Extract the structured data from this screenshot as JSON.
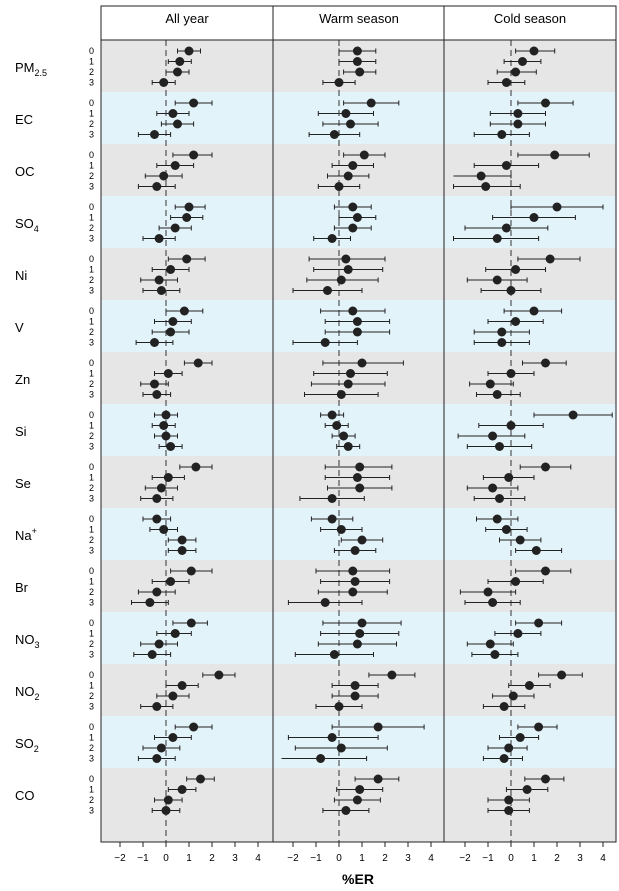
{
  "chart_data": {
    "type": "forest",
    "xlabel": "%ER",
    "panels": [
      "All year",
      "Warm season",
      "Cold season"
    ],
    "xticks": [
      -2,
      -1,
      0,
      1,
      2,
      3,
      4
    ],
    "xlim": [
      -2.5,
      4.5
    ],
    "lags": [
      "0",
      "1",
      "2",
      "3"
    ],
    "colors": {
      "band_gray": "#e6e6e6",
      "band_blue": "#e3f3fa",
      "point": "#222222"
    },
    "groups": [
      {
        "name": "PM",
        "sub": "2.5",
        "sup": "",
        "panels": [
          [
            [
              1.0,
              0.5,
              1.5
            ],
            [
              0.6,
              0.1,
              1.1
            ],
            [
              0.5,
              0.0,
              1.0
            ],
            [
              -0.1,
              -0.6,
              0.4
            ]
          ],
          [
            [
              0.8,
              0.0,
              1.6
            ],
            [
              0.8,
              0.0,
              1.6
            ],
            [
              0.9,
              0.2,
              1.6
            ],
            [
              0.0,
              -0.7,
              0.7
            ]
          ],
          [
            [
              1.0,
              0.2,
              1.9
            ],
            [
              0.5,
              -0.3,
              1.3
            ],
            [
              0.2,
              -0.6,
              1.1
            ],
            [
              -0.2,
              -1.0,
              0.6
            ]
          ]
        ]
      },
      {
        "name": "EC",
        "sub": "",
        "sup": "",
        "panels": [
          [
            [
              1.2,
              0.4,
              2.0
            ],
            [
              0.3,
              -0.4,
              1.0
            ],
            [
              0.5,
              -0.2,
              1.2
            ],
            [
              -0.5,
              -1.2,
              0.2
            ]
          ],
          [
            [
              1.4,
              0.2,
              2.6
            ],
            [
              0.3,
              -0.9,
              1.5
            ],
            [
              0.5,
              -0.7,
              1.7
            ],
            [
              -0.2,
              -1.3,
              0.9
            ]
          ],
          [
            [
              1.5,
              0.3,
              2.7
            ],
            [
              0.3,
              -0.9,
              1.5
            ],
            [
              0.3,
              -0.9,
              1.5
            ],
            [
              -0.4,
              -1.6,
              0.8
            ]
          ]
        ]
      },
      {
        "name": "OC",
        "sub": "",
        "sup": "",
        "panels": [
          [
            [
              1.2,
              0.3,
              2.0
            ],
            [
              0.4,
              -0.4,
              1.2
            ],
            [
              -0.1,
              -0.9,
              0.7
            ],
            [
              -0.4,
              -1.2,
              0.4
            ]
          ],
          [
            [
              1.1,
              0.2,
              2.0
            ],
            [
              0.6,
              -0.3,
              1.5
            ],
            [
              0.4,
              -0.5,
              1.3
            ],
            [
              0.0,
              -0.9,
              0.9
            ]
          ],
          [
            [
              1.9,
              0.3,
              3.4
            ],
            [
              -0.2,
              -1.6,
              1.2
            ],
            [
              -1.3,
              -2.6,
              0.0
            ],
            [
              -1.1,
              -2.5,
              0.4
            ]
          ]
        ]
      },
      {
        "name": "SO",
        "sub": "4",
        "sup": "",
        "panels": [
          [
            [
              1.0,
              0.4,
              1.7
            ],
            [
              0.9,
              0.2,
              1.6
            ],
            [
              0.4,
              -0.3,
              1.1
            ],
            [
              -0.3,
              -1.0,
              0.4
            ]
          ],
          [
            [
              0.6,
              -0.2,
              1.4
            ],
            [
              0.8,
              0.0,
              1.6
            ],
            [
              0.6,
              -0.2,
              1.4
            ],
            [
              -0.3,
              -1.1,
              0.5
            ]
          ],
          [
            [
              2.0,
              0.0,
              4.0
            ],
            [
              1.0,
              -0.8,
              2.8
            ],
            [
              -0.2,
              -2.0,
              1.6
            ],
            [
              -0.6,
              -2.5,
              1.2
            ]
          ]
        ]
      },
      {
        "name": "Ni",
        "sub": "",
        "sup": "",
        "panels": [
          [
            [
              0.9,
              0.1,
              1.7
            ],
            [
              0.2,
              -0.6,
              1.0
            ],
            [
              -0.3,
              -1.1,
              0.5
            ],
            [
              -0.2,
              -1.0,
              0.6
            ]
          ],
          [
            [
              0.3,
              -1.3,
              2.0
            ],
            [
              0.4,
              -1.1,
              1.9
            ],
            [
              0.1,
              -1.4,
              1.7
            ],
            [
              -0.5,
              -2.0,
              1.0
            ]
          ],
          [
            [
              1.7,
              0.3,
              3.0
            ],
            [
              0.2,
              -1.1,
              1.5
            ],
            [
              -0.6,
              -1.9,
              0.7
            ],
            [
              0.0,
              -1.3,
              1.3
            ]
          ]
        ]
      },
      {
        "name": "V",
        "sub": "",
        "sup": "",
        "panels": [
          [
            [
              0.8,
              0.0,
              1.6
            ],
            [
              0.3,
              -0.5,
              1.1
            ],
            [
              0.2,
              -0.6,
              1.0
            ],
            [
              -0.5,
              -1.3,
              0.3
            ]
          ],
          [
            [
              0.6,
              -0.8,
              2.0
            ],
            [
              0.8,
              -0.6,
              2.2
            ],
            [
              0.8,
              -0.6,
              2.2
            ],
            [
              -0.6,
              -2.0,
              0.8
            ]
          ],
          [
            [
              1.0,
              -0.3,
              2.2
            ],
            [
              0.2,
              -1.0,
              1.4
            ],
            [
              -0.4,
              -1.6,
              0.8
            ],
            [
              -0.4,
              -1.6,
              0.8
            ]
          ]
        ]
      },
      {
        "name": "Zn",
        "sub": "",
        "sup": "",
        "panels": [
          [
            [
              1.4,
              0.8,
              2.0
            ],
            [
              0.1,
              -0.5,
              0.7
            ],
            [
              -0.5,
              -1.1,
              0.1
            ],
            [
              -0.4,
              -1.0,
              0.2
            ]
          ],
          [
            [
              1.0,
              -0.7,
              2.8
            ],
            [
              0.5,
              -1.1,
              2.1
            ],
            [
              0.4,
              -1.2,
              2.0
            ],
            [
              0.1,
              -1.5,
              1.7
            ]
          ],
          [
            [
              1.5,
              0.5,
              2.4
            ],
            [
              0.0,
              -1.0,
              1.0
            ],
            [
              -0.9,
              -1.8,
              0.1
            ],
            [
              -0.6,
              -1.5,
              0.4
            ]
          ]
        ]
      },
      {
        "name": "Si",
        "sub": "",
        "sup": "",
        "panels": [
          [
            [
              0.0,
              -0.5,
              0.5
            ],
            [
              -0.1,
              -0.6,
              0.4
            ],
            [
              0.0,
              -0.5,
              0.5
            ],
            [
              0.2,
              -0.3,
              0.7
            ]
          ],
          [
            [
              -0.3,
              -0.8,
              0.2
            ],
            [
              -0.1,
              -0.6,
              0.4
            ],
            [
              0.2,
              -0.3,
              0.7
            ],
            [
              0.4,
              -0.1,
              0.9
            ]
          ],
          [
            [
              2.7,
              1.0,
              4.4
            ],
            [
              0.0,
              -1.4,
              1.4
            ],
            [
              -0.8,
              -2.3,
              0.6
            ],
            [
              -0.5,
              -1.9,
              0.9
            ]
          ]
        ]
      },
      {
        "name": "Se",
        "sub": "",
        "sup": "",
        "panels": [
          [
            [
              1.3,
              0.6,
              2.0
            ],
            [
              0.1,
              -0.6,
              0.8
            ],
            [
              -0.2,
              -0.9,
              0.5
            ],
            [
              -0.4,
              -1.1,
              0.3
            ]
          ],
          [
            [
              0.9,
              -0.6,
              2.3
            ],
            [
              0.8,
              -0.6,
              2.2
            ],
            [
              0.9,
              -0.5,
              2.3
            ],
            [
              -0.3,
              -1.7,
              1.1
            ]
          ],
          [
            [
              1.5,
              0.4,
              2.6
            ],
            [
              -0.1,
              -1.2,
              1.0
            ],
            [
              -0.8,
              -1.9,
              0.3
            ],
            [
              -0.5,
              -1.6,
              0.6
            ]
          ]
        ]
      },
      {
        "name": "Na",
        "sub": "",
        "sup": "+",
        "panels": [
          [
            [
              -0.4,
              -1.0,
              0.2
            ],
            [
              -0.1,
              -0.7,
              0.5
            ],
            [
              0.7,
              0.1,
              1.3
            ],
            [
              0.7,
              0.1,
              1.3
            ]
          ],
          [
            [
              -0.3,
              -1.2,
              0.6
            ],
            [
              0.1,
              -0.8,
              1.0
            ],
            [
              1.0,
              0.1,
              1.9
            ],
            [
              0.7,
              -0.2,
              1.6
            ]
          ],
          [
            [
              -0.6,
              -1.5,
              0.3
            ],
            [
              -0.2,
              -1.1,
              0.7
            ],
            [
              0.4,
              -0.5,
              1.3
            ],
            [
              1.1,
              0.2,
              2.2
            ]
          ]
        ]
      },
      {
        "name": "Br",
        "sub": "",
        "sup": "",
        "panels": [
          [
            [
              1.1,
              0.2,
              2.0
            ],
            [
              0.2,
              -0.6,
              1.0
            ],
            [
              -0.4,
              -1.2,
              0.4
            ],
            [
              -0.7,
              -1.5,
              0.1
            ]
          ],
          [
            [
              0.6,
              -1.0,
              2.2
            ],
            [
              0.7,
              -0.8,
              2.2
            ],
            [
              0.6,
              -0.9,
              2.1
            ],
            [
              -0.6,
              -2.2,
              1.0
            ]
          ],
          [
            [
              1.5,
              0.2,
              2.6
            ],
            [
              0.2,
              -1.0,
              1.4
            ],
            [
              -1.0,
              -2.2,
              0.2
            ],
            [
              -0.8,
              -2.0,
              0.4
            ]
          ]
        ]
      },
      {
        "name": "NO",
        "sub": "3",
        "sup": "",
        "panels": [
          [
            [
              1.1,
              0.3,
              1.8
            ],
            [
              0.4,
              -0.4,
              1.1
            ],
            [
              -0.3,
              -1.1,
              0.5
            ],
            [
              -0.6,
              -1.4,
              0.2
            ]
          ],
          [
            [
              1.0,
              -0.7,
              2.7
            ],
            [
              0.9,
              -0.8,
              2.6
            ],
            [
              0.8,
              -0.9,
              2.5
            ],
            [
              -0.2,
              -1.9,
              1.5
            ]
          ],
          [
            [
              1.2,
              0.2,
              2.2
            ],
            [
              0.3,
              -0.7,
              1.3
            ],
            [
              -0.9,
              -1.9,
              0.1
            ],
            [
              -0.7,
              -1.7,
              0.3
            ]
          ]
        ]
      },
      {
        "name": "NO",
        "sub": "2",
        "sup": "",
        "panels": [
          [
            [
              2.3,
              1.6,
              3.0
            ],
            [
              0.7,
              0.0,
              1.4
            ],
            [
              0.3,
              -0.4,
              1.0
            ],
            [
              -0.4,
              -1.1,
              0.3
            ]
          ],
          [
            [
              2.3,
              1.3,
              3.3
            ],
            [
              0.7,
              -0.3,
              1.7
            ],
            [
              0.7,
              -0.3,
              1.7
            ],
            [
              0.0,
              -1.0,
              1.0
            ]
          ],
          [
            [
              2.2,
              1.2,
              3.1
            ],
            [
              0.8,
              -0.1,
              1.7
            ],
            [
              0.1,
              -0.8,
              1.0
            ],
            [
              -0.3,
              -1.2,
              0.6
            ]
          ]
        ]
      },
      {
        "name": "SO",
        "sub": "2",
        "sup": "",
        "panels": [
          [
            [
              1.2,
              0.4,
              2.0
            ],
            [
              0.3,
              -0.5,
              1.1
            ],
            [
              -0.2,
              -1.0,
              0.6
            ],
            [
              -0.4,
              -1.2,
              0.4
            ]
          ],
          [
            [
              1.7,
              -0.3,
              3.7
            ],
            [
              -0.3,
              -2.2,
              1.7
            ],
            [
              0.1,
              -1.9,
              2.1
            ],
            [
              -0.8,
              -2.8,
              1.2
            ]
          ],
          [
            [
              1.2,
              0.3,
              2.0
            ],
            [
              0.4,
              -0.5,
              1.2
            ],
            [
              -0.1,
              -1.0,
              0.7
            ],
            [
              -0.3,
              -1.2,
              0.5
            ]
          ]
        ]
      },
      {
        "name": "CO",
        "sub": "",
        "sup": "",
        "panels": [
          [
            [
              1.5,
              0.9,
              2.1
            ],
            [
              0.7,
              0.1,
              1.3
            ],
            [
              0.1,
              -0.5,
              0.7
            ],
            [
              0.0,
              -0.6,
              0.6
            ]
          ],
          [
            [
              1.7,
              0.7,
              2.6
            ],
            [
              0.9,
              -0.1,
              1.9
            ],
            [
              0.8,
              -0.2,
              1.8
            ],
            [
              0.3,
              -0.7,
              1.3
            ]
          ],
          [
            [
              1.5,
              0.6,
              2.3
            ],
            [
              0.7,
              -0.2,
              1.6
            ],
            [
              -0.1,
              -1.0,
              0.8
            ],
            [
              -0.1,
              -1.0,
              0.8
            ]
          ]
        ]
      }
    ]
  }
}
